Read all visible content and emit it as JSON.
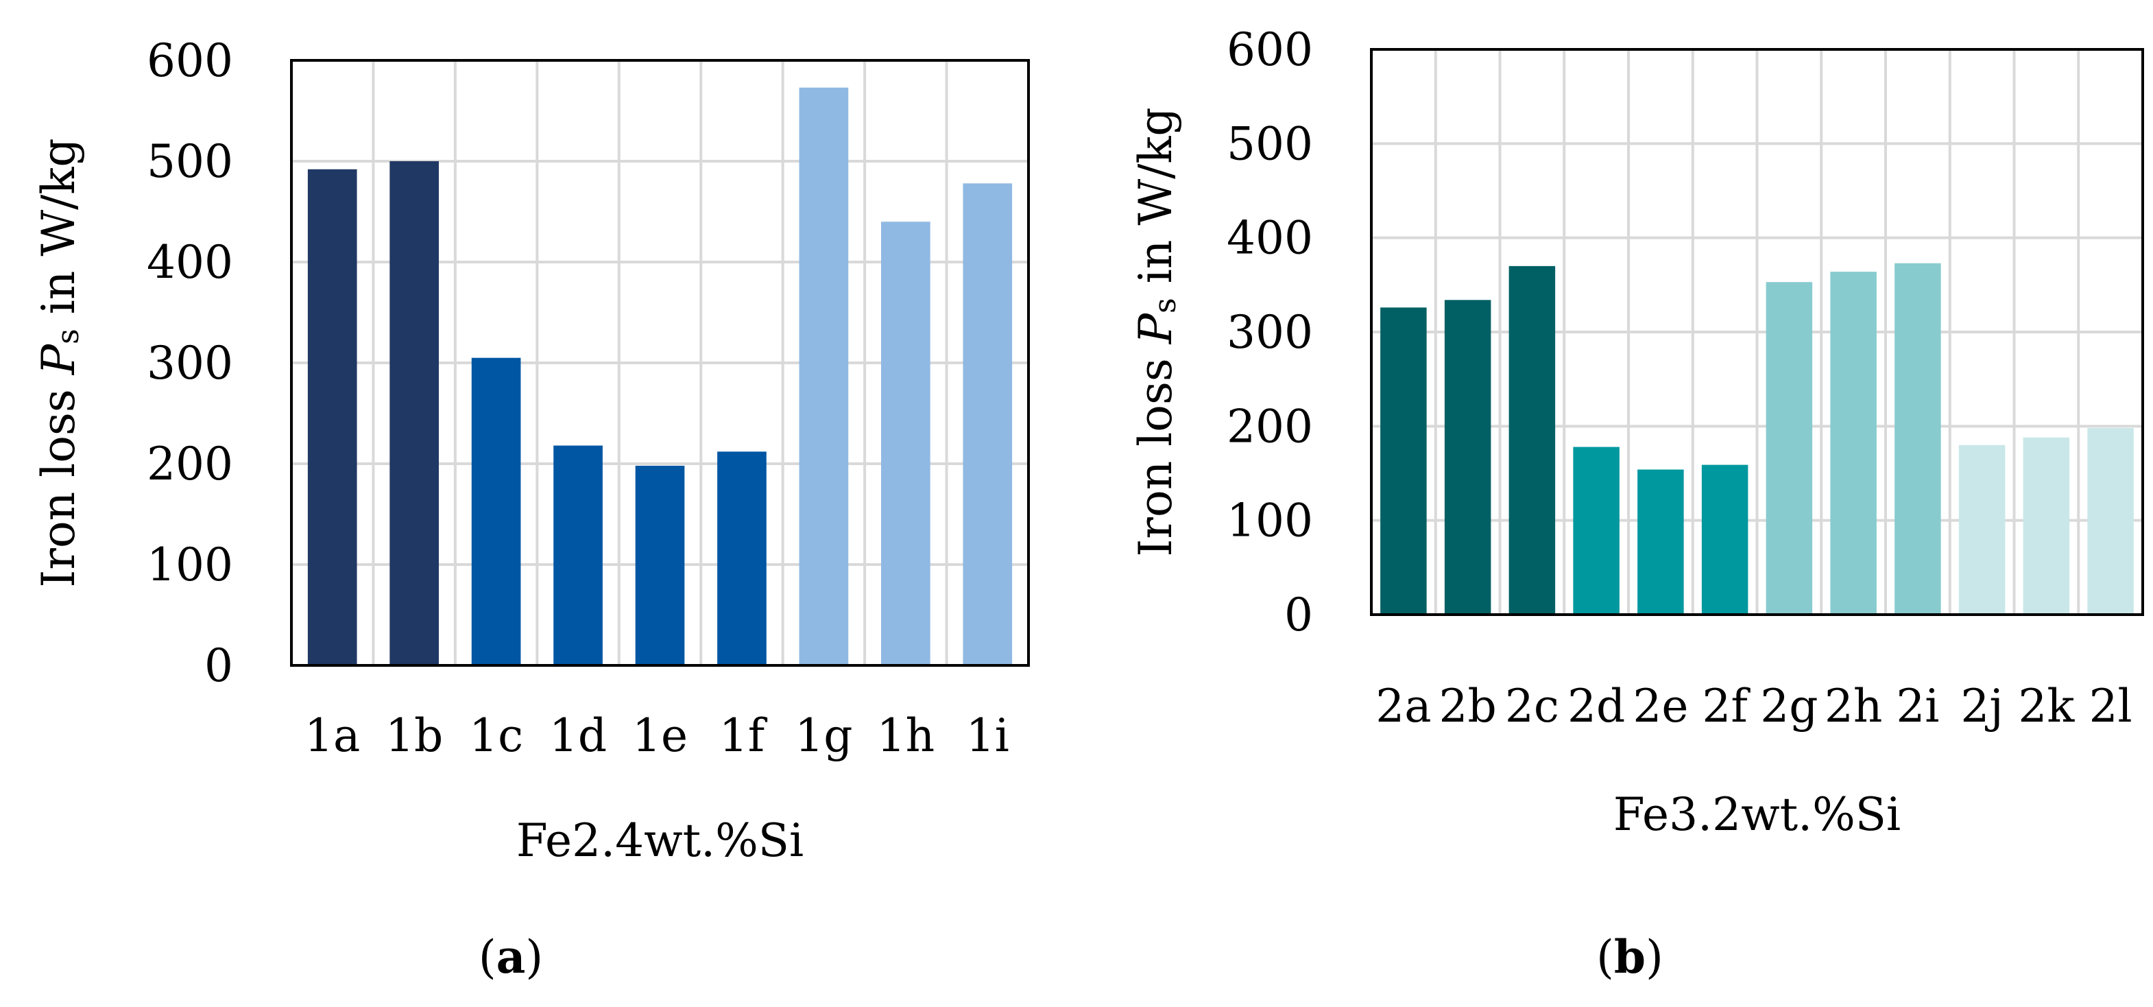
{
  "chart_data": [
    {
      "type": "bar",
      "panel_label": "a",
      "title": "",
      "xlabel": "Fe2.4wt.%Si",
      "ylabel": "Iron loss P_s in W/kg",
      "ylabel_parts": {
        "pre": "Iron loss ",
        "sym": "P",
        "sub": "s",
        "post": " in W/kg"
      },
      "ylim": [
        0,
        600
      ],
      "yticks": [
        0,
        100,
        200,
        300,
        400,
        500,
        600
      ],
      "grid": true,
      "categories": [
        "1a",
        "1b",
        "1c",
        "1d",
        "1e",
        "1f",
        "1g",
        "1h",
        "1i"
      ],
      "values": [
        492,
        500,
        305,
        218,
        198,
        212,
        573,
        440,
        478
      ],
      "bar_colors": [
        "#203864",
        "#203864",
        "#0056a3",
        "#0056a3",
        "#0056a3",
        "#0056a3",
        "#8fb9e3",
        "#8fb9e3",
        "#8fb9e3"
      ]
    },
    {
      "type": "bar",
      "panel_label": "b",
      "title": "",
      "xlabel": "Fe3.2wt.%Si",
      "ylabel": "Iron loss P_s in W/kg",
      "ylabel_parts": {
        "pre": "Iron loss ",
        "sym": "P",
        "sub": "s",
        "post": " in W/kg"
      },
      "ylim": [
        0,
        600
      ],
      "yticks": [
        0,
        100,
        200,
        300,
        400,
        500,
        600
      ],
      "grid": true,
      "categories": [
        "2a",
        "2b",
        "2c",
        "2d",
        "2e",
        "2f",
        "2g",
        "2h",
        "2i",
        "2j",
        "2k",
        "2l"
      ],
      "values": [
        326,
        334,
        370,
        178,
        154,
        159,
        353,
        364,
        373,
        180,
        188,
        198
      ],
      "bar_colors": [
        "#006064",
        "#006064",
        "#006064",
        "#00989f",
        "#00989f",
        "#00989f",
        "#88cbcf",
        "#88cbcf",
        "#88cbcf",
        "#c9e7e9",
        "#c9e7e9",
        "#c9e7e9"
      ]
    }
  ]
}
